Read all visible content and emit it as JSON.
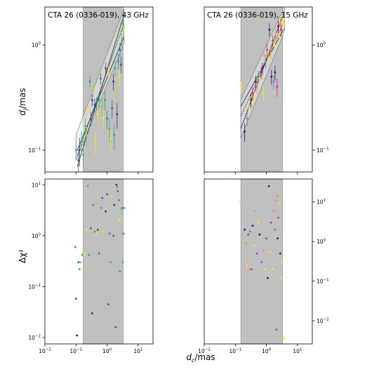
{
  "chart_data": [
    {
      "type": "scatter",
      "title": "CTA 26 (0336-019), 43 GHz",
      "ylabel": "d_j/mas",
      "xscale": "log",
      "yscale": "log",
      "xlim": [
        0.01,
        30
      ],
      "ylim": [
        0.062,
        2.3
      ],
      "yticks": [
        {
          "v": 0.1,
          "b": "10",
          "e": "−1"
        },
        {
          "v": 1,
          "b": "10",
          "e": "0"
        }
      ],
      "shaded_x": [
        0.17,
        3.3
      ],
      "fit_lines": [
        {
          "x": [
            0.11,
            3.5
          ],
          "y": [
            0.07,
            1.95
          ]
        },
        {
          "x": [
            0.11,
            3.5
          ],
          "y": [
            0.09,
            1.6
          ]
        },
        {
          "x": [
            0.11,
            3.5
          ],
          "y": [
            0.1,
            1.2
          ]
        }
      ],
      "fit_band": {
        "x": [
          0.1,
          3.5
        ],
        "lower": [
          0.08,
          1.05
        ],
        "upper": [
          0.14,
          2.2
        ]
      },
      "points": [
        {
          "x": 0.1,
          "y": 0.1,
          "c": "#1f9e89",
          "e": 0.02
        },
        {
          "x": 0.12,
          "y": 0.08,
          "c": "#3b528b",
          "e": 0.02
        },
        {
          "x": 0.13,
          "y": 0.1,
          "c": "#482878",
          "e": 0.03
        },
        {
          "x": 0.15,
          "y": 0.12,
          "c": "#1f9e89",
          "e": 0.03
        },
        {
          "x": 0.17,
          "y": 0.09,
          "c": "#35b779",
          "e": 0.02
        },
        {
          "x": 0.2,
          "y": 0.17,
          "c": "#35b779",
          "e": 0.03
        },
        {
          "x": 0.22,
          "y": 0.14,
          "c": "#6ece58",
          "e": 0.03
        },
        {
          "x": 0.25,
          "y": 0.24,
          "c": "#fde725",
          "e": 0.04
        },
        {
          "x": 0.28,
          "y": 0.45,
          "c": "#1f9e89",
          "e": 0.06
        },
        {
          "x": 0.3,
          "y": 0.2,
          "c": "#31688e",
          "e": 0.03
        },
        {
          "x": 0.33,
          "y": 0.3,
          "c": "#472d7b",
          "e": 0.04
        },
        {
          "x": 0.36,
          "y": 0.38,
          "c": "#b5de2b",
          "e": 0.06
        },
        {
          "x": 0.4,
          "y": 0.27,
          "c": "#3b528b",
          "e": 0.04
        },
        {
          "x": 0.42,
          "y": 0.12,
          "c": "#fde725",
          "e": 0.03
        },
        {
          "x": 0.46,
          "y": 0.28,
          "c": "#26828e",
          "e": 0.04
        },
        {
          "x": 0.5,
          "y": 0.22,
          "c": "#fde725",
          "e": 0.04
        },
        {
          "x": 0.55,
          "y": 0.3,
          "c": "#35b779",
          "e": 0.05
        },
        {
          "x": 0.62,
          "y": 0.48,
          "c": "#31688e",
          "e": 0.06
        },
        {
          "x": 0.7,
          "y": 0.26,
          "c": "#6ece58",
          "e": 0.05
        },
        {
          "x": 0.75,
          "y": 0.2,
          "c": "#fde725",
          "e": 0.04
        },
        {
          "x": 0.85,
          "y": 0.3,
          "c": "#1f9e89",
          "e": 0.06
        },
        {
          "x": 0.9,
          "y": 0.6,
          "c": "#3b528b",
          "e": 0.08
        },
        {
          "x": 1.0,
          "y": 0.2,
          "c": "#26828e",
          "e": 0.04
        },
        {
          "x": 1.1,
          "y": 0.55,
          "c": "#fde725",
          "e": 0.08
        },
        {
          "x": 1.2,
          "y": 0.16,
          "c": "#35b779",
          "e": 0.04
        },
        {
          "x": 1.3,
          "y": 0.13,
          "c": "#fde725",
          "e": 0.03
        },
        {
          "x": 1.45,
          "y": 0.25,
          "c": "#31688e",
          "e": 0.05
        },
        {
          "x": 1.6,
          "y": 0.45,
          "c": "#472d7b",
          "e": 0.08
        },
        {
          "x": 1.7,
          "y": 0.14,
          "c": "#1f9e89",
          "e": 0.04
        },
        {
          "x": 1.8,
          "y": 0.6,
          "c": "#35b779",
          "e": 0.1
        },
        {
          "x": 2.0,
          "y": 0.38,
          "c": "#b5de2b",
          "e": 0.07
        },
        {
          "x": 2.1,
          "y": 0.22,
          "c": "#472d7b",
          "e": 0.06
        },
        {
          "x": 2.3,
          "y": 0.7,
          "c": "#1f9e89",
          "e": 0.12
        },
        {
          "x": 2.5,
          "y": 0.5,
          "c": "#fde725",
          "e": 0.09
        },
        {
          "x": 2.6,
          "y": 0.9,
          "c": "#26828e",
          "e": 0.15
        },
        {
          "x": 2.8,
          "y": 0.65,
          "c": "#3b528b",
          "e": 0.11
        },
        {
          "x": 3.0,
          "y": 1.1,
          "c": "#35b779",
          "e": 0.18
        },
        {
          "x": 3.2,
          "y": 1.6,
          "c": "#1f9e89",
          "e": 0.25
        },
        {
          "x": 3.4,
          "y": 1.4,
          "c": "#fde725",
          "e": 0.22
        }
      ]
    },
    {
      "type": "scatter",
      "title": "CTA 26 (0336-019), 15 GHz",
      "xscale": "log",
      "yscale": "log",
      "xlim": [
        0.01,
        30
      ],
      "ylim": [
        0.062,
        2.3
      ],
      "yticks": [
        {
          "v": 0.1,
          "b": "10",
          "e": "−1"
        },
        {
          "v": 1,
          "b": "10",
          "e": "0"
        }
      ],
      "shaded_x": [
        0.15,
        3.3
      ],
      "fit_lines": [
        {
          "x": [
            0.15,
            3.8
          ],
          "y": [
            0.16,
            2.1
          ]
        },
        {
          "x": [
            0.15,
            3.8
          ],
          "y": [
            0.21,
            1.7
          ]
        },
        {
          "x": [
            0.15,
            3.8
          ],
          "y": [
            0.26,
            1.45
          ]
        }
      ],
      "fit_band": {
        "x": [
          0.15,
          3.8
        ],
        "lower": [
          0.13,
          1.35
        ],
        "upper": [
          0.3,
          2.3
        ]
      },
      "points": [
        {
          "x": 0.15,
          "y": 0.4,
          "c": "#fde725",
          "e": 0.05
        },
        {
          "x": 0.2,
          "y": 0.15,
          "c": "#3b0f70",
          "e": 0.03
        },
        {
          "x": 0.24,
          "y": 0.2,
          "c": "#5c7cd6",
          "e": 0.03
        },
        {
          "x": 0.28,
          "y": 0.25,
          "c": "#fde725",
          "e": 0.04
        },
        {
          "x": 0.32,
          "y": 0.3,
          "c": "#3b0f70",
          "e": 0.05
        },
        {
          "x": 0.36,
          "y": 0.35,
          "c": "#b73779",
          "e": 0.05
        },
        {
          "x": 0.4,
          "y": 0.32,
          "c": "#fde725",
          "e": 0.05
        },
        {
          "x": 0.45,
          "y": 0.45,
          "c": "#3b0f70",
          "e": 0.06
        },
        {
          "x": 0.5,
          "y": 0.4,
          "c": "#fc8961",
          "e": 0.06
        },
        {
          "x": 0.55,
          "y": 0.5,
          "c": "#5c7cd6",
          "e": 0.07
        },
        {
          "x": 0.6,
          "y": 0.48,
          "c": "#fde725",
          "e": 0.07
        },
        {
          "x": 0.68,
          "y": 0.55,
          "c": "#b73779",
          "e": 0.08
        },
        {
          "x": 0.75,
          "y": 0.6,
          "c": "#3b0f70",
          "e": 0.08
        },
        {
          "x": 0.8,
          "y": 0.35,
          "c": "#fde725",
          "e": 0.06
        },
        {
          "x": 0.85,
          "y": 0.8,
          "c": "#fc8961",
          "e": 0.1
        },
        {
          "x": 0.95,
          "y": 0.7,
          "c": "#5c7cd6",
          "e": 0.1
        },
        {
          "x": 1.05,
          "y": 0.9,
          "c": "#b73779",
          "e": 0.12
        },
        {
          "x": 1.15,
          "y": 0.75,
          "c": "#fde725",
          "e": 0.1
        },
        {
          "x": 1.25,
          "y": 1.4,
          "c": "#3b0f70",
          "e": 0.2
        },
        {
          "x": 1.35,
          "y": 0.85,
          "c": "#fc8961",
          "e": 0.12
        },
        {
          "x": 1.45,
          "y": 0.5,
          "c": "#3b0f70",
          "e": 0.08
        },
        {
          "x": 1.6,
          "y": 1.1,
          "c": "#b73779",
          "e": 0.15
        },
        {
          "x": 1.7,
          "y": 0.45,
          "c": "#5c7cd6",
          "e": 0.07
        },
        {
          "x": 1.8,
          "y": 1.0,
          "c": "#fde725",
          "e": 0.14
        },
        {
          "x": 1.9,
          "y": 0.55,
          "c": "#3b0f70",
          "e": 0.09
        },
        {
          "x": 2.0,
          "y": 1.3,
          "c": "#fc8961",
          "e": 0.18
        },
        {
          "x": 2.2,
          "y": 0.4,
          "c": "#b73779",
          "e": 0.08
        },
        {
          "x": 2.4,
          "y": 1.5,
          "c": "#3b0f70",
          "e": 0.2
        },
        {
          "x": 2.6,
          "y": 1.2,
          "c": "#fde725",
          "e": 0.17
        },
        {
          "x": 2.8,
          "y": 1.6,
          "c": "#fc8961",
          "e": 0.22
        },
        {
          "x": 3.0,
          "y": 1.4,
          "c": "#b73779",
          "e": 0.2
        },
        {
          "x": 3.3,
          "y": 1.7,
          "c": "#fde725",
          "e": 0.24
        },
        {
          "x": 3.6,
          "y": 1.6,
          "c": "#fde725",
          "e": 0.22
        }
      ]
    },
    {
      "type": "scatter",
      "ylabel": "Δχ²",
      "xscale": "log",
      "yscale": "log",
      "xlim": [
        0.01,
        30
      ],
      "ylim": [
        0.0075,
        13
      ],
      "yticks": [
        {
          "v": 0.01,
          "b": "10",
          "e": "−2"
        },
        {
          "v": 0.1,
          "b": "10",
          "e": "−1"
        },
        {
          "v": 1,
          "b": "10",
          "e": "0"
        },
        {
          "v": 10,
          "b": "10",
          "e": "1"
        }
      ],
      "xticks": [
        {
          "v": 0.01,
          "b": "10",
          "e": "−2"
        },
        {
          "v": 0.1,
          "b": "10",
          "e": "−1"
        },
        {
          "v": 1,
          "b": "10",
          "e": "0"
        },
        {
          "v": 10,
          "b": "10",
          "e": "1"
        }
      ],
      "shaded_x": [
        0.17,
        3.3
      ],
      "points": [
        {
          "x": 0.095,
          "y": 0.6,
          "c": "#1f9e89"
        },
        {
          "x": 0.1,
          "y": 0.058,
          "c": "#3b528b"
        },
        {
          "x": 0.105,
          "y": 0.011,
          "c": "#482878"
        },
        {
          "x": 0.11,
          "y": 0.011,
          "c": "#3b528b"
        },
        {
          "x": 0.12,
          "y": 0.3,
          "c": "#3b528b"
        },
        {
          "x": 0.13,
          "y": 0.22,
          "c": "#35b779"
        },
        {
          "x": 0.14,
          "y": 0.3,
          "c": "#6ece58"
        },
        {
          "x": 0.16,
          "y": 0.42,
          "c": "#1f9e89"
        },
        {
          "x": 0.18,
          "y": 0.42,
          "c": "#fde725"
        },
        {
          "x": 0.2,
          "y": 0.2,
          "c": "#b5de2b"
        },
        {
          "x": 0.22,
          "y": 1.3,
          "c": "#fde725"
        },
        {
          "x": 0.24,
          "y": 9.5,
          "c": "#35b779"
        },
        {
          "x": 0.26,
          "y": 0.42,
          "c": "#1f9e89"
        },
        {
          "x": 0.28,
          "y": 0.25,
          "c": "#b5de2b"
        },
        {
          "x": 0.3,
          "y": 1.4,
          "c": "#31688e"
        },
        {
          "x": 0.33,
          "y": 0.03,
          "c": "#472d7b"
        },
        {
          "x": 0.36,
          "y": 4.0,
          "c": "#1f9e89"
        },
        {
          "x": 0.4,
          "y": 1.2,
          "c": "#35b779"
        },
        {
          "x": 0.45,
          "y": 1.1,
          "c": "#fde725"
        },
        {
          "x": 0.5,
          "y": 1.3,
          "c": "#3b528b"
        },
        {
          "x": 0.55,
          "y": 0.45,
          "c": "#26828e"
        },
        {
          "x": 0.6,
          "y": 1.1,
          "c": "#b5de2b"
        },
        {
          "x": 0.65,
          "y": 3.5,
          "c": "#35b779"
        },
        {
          "x": 0.7,
          "y": 5.5,
          "c": "#3b528b"
        },
        {
          "x": 0.8,
          "y": 1.2,
          "c": "#fde725"
        },
        {
          "x": 0.9,
          "y": 3.0,
          "c": "#472d7b"
        },
        {
          "x": 1.0,
          "y": 6.5,
          "c": "#31688e"
        },
        {
          "x": 1.1,
          "y": 0.045,
          "c": "#3b528b"
        },
        {
          "x": 1.2,
          "y": 1.1,
          "c": "#1f9e89"
        },
        {
          "x": 1.3,
          "y": 0.3,
          "c": "#35b779"
        },
        {
          "x": 1.4,
          "y": 6.0,
          "c": "#fde725"
        },
        {
          "x": 1.6,
          "y": 1.0,
          "c": "#26828e"
        },
        {
          "x": 1.7,
          "y": 4.0,
          "c": "#472d7b"
        },
        {
          "x": 1.9,
          "y": 0.016,
          "c": "#3b528b"
        },
        {
          "x": 2.0,
          "y": 10.0,
          "c": "#472d7b"
        },
        {
          "x": 2.1,
          "y": 9.0,
          "c": "#35b779"
        },
        {
          "x": 2.2,
          "y": 7.5,
          "c": "#26828e"
        },
        {
          "x": 2.4,
          "y": 5.0,
          "c": "#1f9e89"
        },
        {
          "x": 2.5,
          "y": 2.0,
          "c": "#fde725"
        },
        {
          "x": 2.6,
          "y": 0.2,
          "c": "#1f9e89"
        },
        {
          "x": 2.8,
          "y": 3.3,
          "c": "#6ece58"
        },
        {
          "x": 3.0,
          "y": 3.5,
          "c": "#1f9e89"
        },
        {
          "x": 3.2,
          "y": 0.3,
          "c": "#35b779"
        },
        {
          "x": 3.3,
          "y": 1.1,
          "c": "#26828e"
        },
        {
          "x": 3.5,
          "y": 3.5,
          "c": "#1f9e89"
        }
      ]
    },
    {
      "type": "scatter",
      "xlabel": "d_c/mas",
      "xscale": "log",
      "yscale": "log",
      "xlim": [
        0.01,
        30
      ],
      "ylim": [
        0.0026,
        38
      ],
      "yticks": [
        {
          "v": 0.01,
          "b": "10",
          "e": "−2"
        },
        {
          "v": 0.1,
          "b": "10",
          "e": "−1"
        },
        {
          "v": 1,
          "b": "10",
          "e": "0"
        },
        {
          "v": 10,
          "b": "10",
          "e": "1"
        }
      ],
      "xticks": [
        {
          "v": 0.01,
          "b": "10",
          "e": "−2"
        },
        {
          "v": 0.1,
          "b": "10",
          "e": "−1"
        },
        {
          "v": 1,
          "b": "10",
          "e": "0"
        },
        {
          "v": 10,
          "b": "10",
          "e": "1"
        }
      ],
      "shaded_x": [
        0.15,
        3.3
      ],
      "points": [
        {
          "x": 0.14,
          "y": 10.0,
          "c": "#fde725"
        },
        {
          "x": 0.2,
          "y": 2.0,
          "c": "#3b0f70"
        },
        {
          "x": 0.22,
          "y": 0.9,
          "c": "#fc8961"
        },
        {
          "x": 0.24,
          "y": 0.25,
          "c": "#fde725"
        },
        {
          "x": 0.26,
          "y": 1.5,
          "c": "#b73779"
        },
        {
          "x": 0.28,
          "y": 0.2,
          "c": "#fc8961"
        },
        {
          "x": 0.3,
          "y": 1.8,
          "c": "#5c7cd6"
        },
        {
          "x": 0.33,
          "y": 0.2,
          "c": "#b73779"
        },
        {
          "x": 0.36,
          "y": 2.5,
          "c": "#3b0f70"
        },
        {
          "x": 0.4,
          "y": 0.8,
          "c": "#fde725"
        },
        {
          "x": 0.45,
          "y": 6.0,
          "c": "#fc8961"
        },
        {
          "x": 0.5,
          "y": 0.5,
          "c": "#b73779"
        },
        {
          "x": 0.55,
          "y": 3.0,
          "c": "#fde725"
        },
        {
          "x": 0.6,
          "y": 1.5,
          "c": "#3b0f70"
        },
        {
          "x": 0.7,
          "y": 0.3,
          "c": "#5c7cd6"
        },
        {
          "x": 0.8,
          "y": 0.6,
          "c": "#fc8961"
        },
        {
          "x": 0.9,
          "y": 0.2,
          "c": "#fde725"
        },
        {
          "x": 1.0,
          "y": 1.2,
          "c": "#b73779"
        },
        {
          "x": 1.1,
          "y": 0.12,
          "c": "#3b0f70"
        },
        {
          "x": 1.2,
          "y": 25.0,
          "c": "#3b0f70"
        },
        {
          "x": 1.3,
          "y": 0.55,
          "c": "#fde725"
        },
        {
          "x": 1.4,
          "y": 3.0,
          "c": "#b73779"
        },
        {
          "x": 1.6,
          "y": 0.2,
          "c": "#fde725"
        },
        {
          "x": 1.7,
          "y": 6.0,
          "c": "#fc8961"
        },
        {
          "x": 1.9,
          "y": 2.0,
          "c": "#5c7cd6"
        },
        {
          "x": 2.0,
          "y": 11.0,
          "c": "#fc8961"
        },
        {
          "x": 2.1,
          "y": 0.006,
          "c": "#b73779"
        },
        {
          "x": 2.2,
          "y": 14.0,
          "c": "#fc8961"
        },
        {
          "x": 2.3,
          "y": 1.2,
          "c": "#3b0f70"
        },
        {
          "x": 2.4,
          "y": 4.0,
          "c": "#b73779"
        },
        {
          "x": 2.6,
          "y": 9.0,
          "c": "#fde725"
        },
        {
          "x": 2.8,
          "y": 0.5,
          "c": "#3b0f70"
        },
        {
          "x": 3.0,
          "y": 0.12,
          "c": "#fde725"
        },
        {
          "x": 3.3,
          "y": 0.3,
          "c": "#fde725"
        },
        {
          "x": 3.5,
          "y": 0.004,
          "c": "#fde725"
        },
        {
          "x": 3.7,
          "y": 0.0035,
          "c": "#fde725"
        }
      ]
    }
  ]
}
